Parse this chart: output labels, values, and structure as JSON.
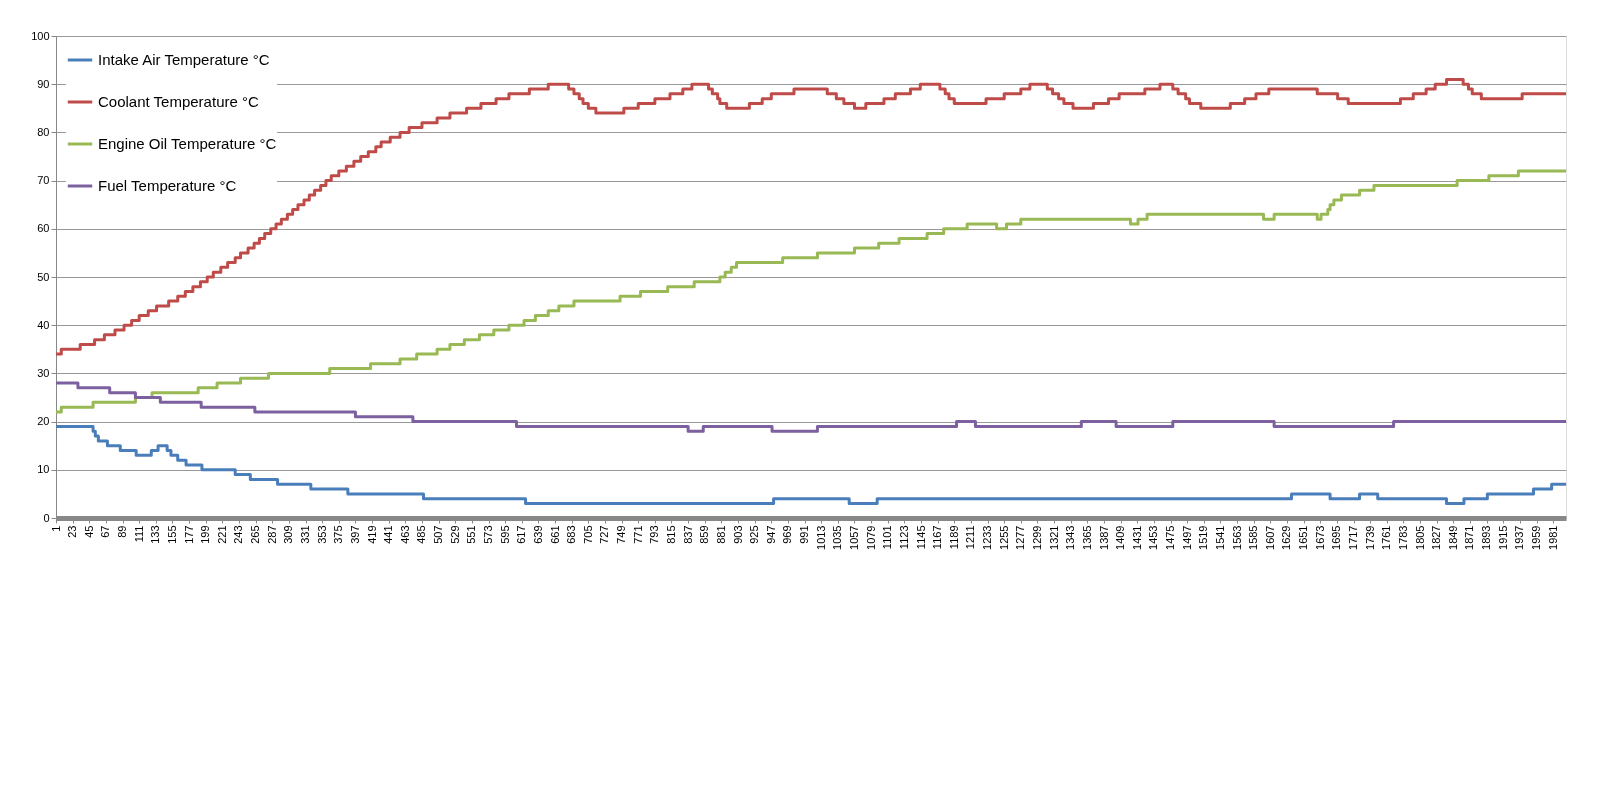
{
  "chart_data": {
    "type": "step",
    "xlim": [
      1,
      1998
    ],
    "xticks": [
      1,
      23,
      45,
      67,
      89,
      111,
      133,
      155,
      177,
      199,
      221,
      243,
      265,
      287,
      309,
      331,
      353,
      375,
      397,
      419,
      441,
      463,
      485,
      507,
      529,
      551,
      573,
      595,
      617,
      639,
      661,
      683,
      705,
      727,
      749,
      771,
      793,
      815,
      837,
      859,
      881,
      903,
      925,
      947,
      969,
      991,
      1013,
      1035,
      1057,
      1079,
      1101,
      1123,
      1145,
      1167,
      1189,
      1211,
      1233,
      1255,
      1277,
      1299,
      1321,
      1343,
      1365,
      1387,
      1409,
      1431,
      1453,
      1475,
      1497,
      1519,
      1541,
      1563,
      1585,
      1607,
      1629,
      1651,
      1673,
      1695,
      1717,
      1739,
      1761,
      1783,
      1805,
      1827,
      1849,
      1871,
      1893,
      1915,
      1937,
      1959,
      1981
    ],
    "ylim": [
      0,
      100
    ],
    "yticks": [
      0,
      10,
      20,
      30,
      40,
      50,
      60,
      70,
      80,
      90,
      100
    ],
    "grid": "y",
    "legend": "top left",
    "line_style": "solid",
    "marker": "none",
    "series": [
      {
        "name": "Intake Air Temperature °C",
        "color": "#4a7ebb",
        "x": [
          1,
          50,
          53,
          57,
          69,
          86,
          107,
          127,
          136,
          148,
          153,
          162,
          173,
          194,
          238,
          258,
          294,
          338,
          387,
          487,
          622,
          950,
          1050,
          1087,
          1635,
          1686,
          1725,
          1749,
          1840,
          1863,
          1894,
          1955,
          1979,
          1998
        ],
        "values": [
          19,
          18,
          17,
          16,
          15,
          14,
          13,
          14,
          15,
          14,
          13,
          12,
          11,
          10,
          9,
          8,
          7,
          6,
          5,
          4,
          3,
          4,
          3,
          4,
          5,
          4,
          5,
          4,
          3,
          4,
          5,
          6,
          7,
          7
        ]
      },
      {
        "name": "Coolant Temperature °C",
        "color": "#be4b48",
        "x": [
          1,
          8,
          33,
          52,
          65,
          79,
          91,
          101,
          111,
          123,
          134,
          150,
          162,
          172,
          182,
          192,
          201,
          209,
          219,
          228,
          238,
          245,
          255,
          263,
          270,
          277,
          285,
          292,
          299,
          307,
          314,
          321,
          329,
          336,
          343,
          351,
          358,
          365,
          375,
          385,
          395,
          404,
          414,
          424,
          431,
          443,
          456,
          468,
          485,
          505,
          522,
          544,
          563,
          583,
          600,
          627,
          652,
          679,
          686,
          693,
          698,
          705,
          715,
          752,
          771,
          793,
          813,
          830,
          842,
          864,
          869,
          876,
          879,
          888,
          918,
          935,
          947,
          977,
          1021,
          1033,
          1043,
          1057,
          1072,
          1096,
          1111,
          1131,
          1144,
          1170,
          1177,
          1182,
          1189,
          1231,
          1255,
          1277,
          1289,
          1312,
          1319,
          1327,
          1334,
          1346,
          1373,
          1393,
          1407,
          1441,
          1461,
          1478,
          1485,
          1495,
          1500,
          1515,
          1554,
          1573,
          1588,
          1605,
          1669,
          1696,
          1710,
          1779,
          1796,
          1813,
          1825,
          1840,
          1862,
          1869,
          1874,
          1886,
          1940,
          1998
        ],
        "values": [
          34,
          35,
          36,
          37,
          38,
          39,
          40,
          41,
          42,
          43,
          44,
          45,
          46,
          47,
          48,
          49,
          50,
          51,
          52,
          53,
          54,
          55,
          56,
          57,
          58,
          59,
          60,
          61,
          62,
          63,
          64,
          65,
          66,
          67,
          68,
          69,
          70,
          71,
          72,
          73,
          74,
          75,
          76,
          77,
          78,
          79,
          80,
          81,
          82,
          83,
          84,
          85,
          86,
          87,
          88,
          89,
          90,
          89,
          88,
          87,
          86,
          85,
          84,
          85,
          86,
          87,
          88,
          89,
          90,
          89,
          88,
          87,
          86,
          85,
          86,
          87,
          88,
          89,
          88,
          87,
          86,
          85,
          86,
          87,
          88,
          89,
          90,
          89,
          88,
          87,
          86,
          87,
          88,
          89,
          90,
          89,
          88,
          87,
          86,
          85,
          86,
          87,
          88,
          89,
          90,
          89,
          88,
          87,
          86,
          85,
          86,
          87,
          88,
          89,
          88,
          87,
          86,
          87,
          88,
          89,
          90,
          91,
          90,
          89,
          88,
          87,
          88,
          88
        ]
      },
      {
        "name": "Engine Oil Temperature °C",
        "color": "#98b954",
        "x": [
          1,
          8,
          50,
          106,
          128,
          189,
          214,
          245,
          282,
          363,
          417,
          456,
          478,
          505,
          522,
          541,
          561,
          580,
          600,
          620,
          635,
          652,
          666,
          686,
          747,
          774,
          810,
          845,
          879,
          886,
          894,
          901,
          962,
          1008,
          1057,
          1089,
          1116,
          1153,
          1175,
          1206,
          1245,
          1258,
          1277,
          1422,
          1432,
          1444,
          1598,
          1612,
          1669,
          1674,
          1683,
          1686,
          1691,
          1701,
          1725,
          1744,
          1854,
          1896,
          1935,
          1998
        ],
        "values": [
          22,
          23,
          24,
          25,
          26,
          27,
          28,
          29,
          30,
          31,
          32,
          33,
          34,
          35,
          36,
          37,
          38,
          39,
          40,
          41,
          42,
          43,
          44,
          45,
          46,
          47,
          48,
          49,
          50,
          51,
          52,
          53,
          54,
          55,
          56,
          57,
          58,
          59,
          60,
          61,
          60,
          61,
          62,
          61,
          62,
          63,
          62,
          63,
          62,
          63,
          64,
          65,
          66,
          67,
          68,
          69,
          70,
          71,
          72,
          72
        ]
      },
      {
        "name": "Fuel Temperature °C",
        "color": "#7d60a0",
        "x": [
          1,
          30,
          72,
          106,
          139,
          193,
          264,
          397,
          473,
          610,
          837,
          857,
          948,
          1008,
          1192,
          1217,
          1357,
          1403,
          1478,
          1612,
          1770,
          1998
        ],
        "values": [
          28,
          27,
          26,
          25,
          24,
          23,
          22,
          21,
          20,
          19,
          18,
          19,
          18,
          19,
          20,
          19,
          20,
          19,
          20,
          19,
          20,
          20
        ]
      }
    ]
  }
}
